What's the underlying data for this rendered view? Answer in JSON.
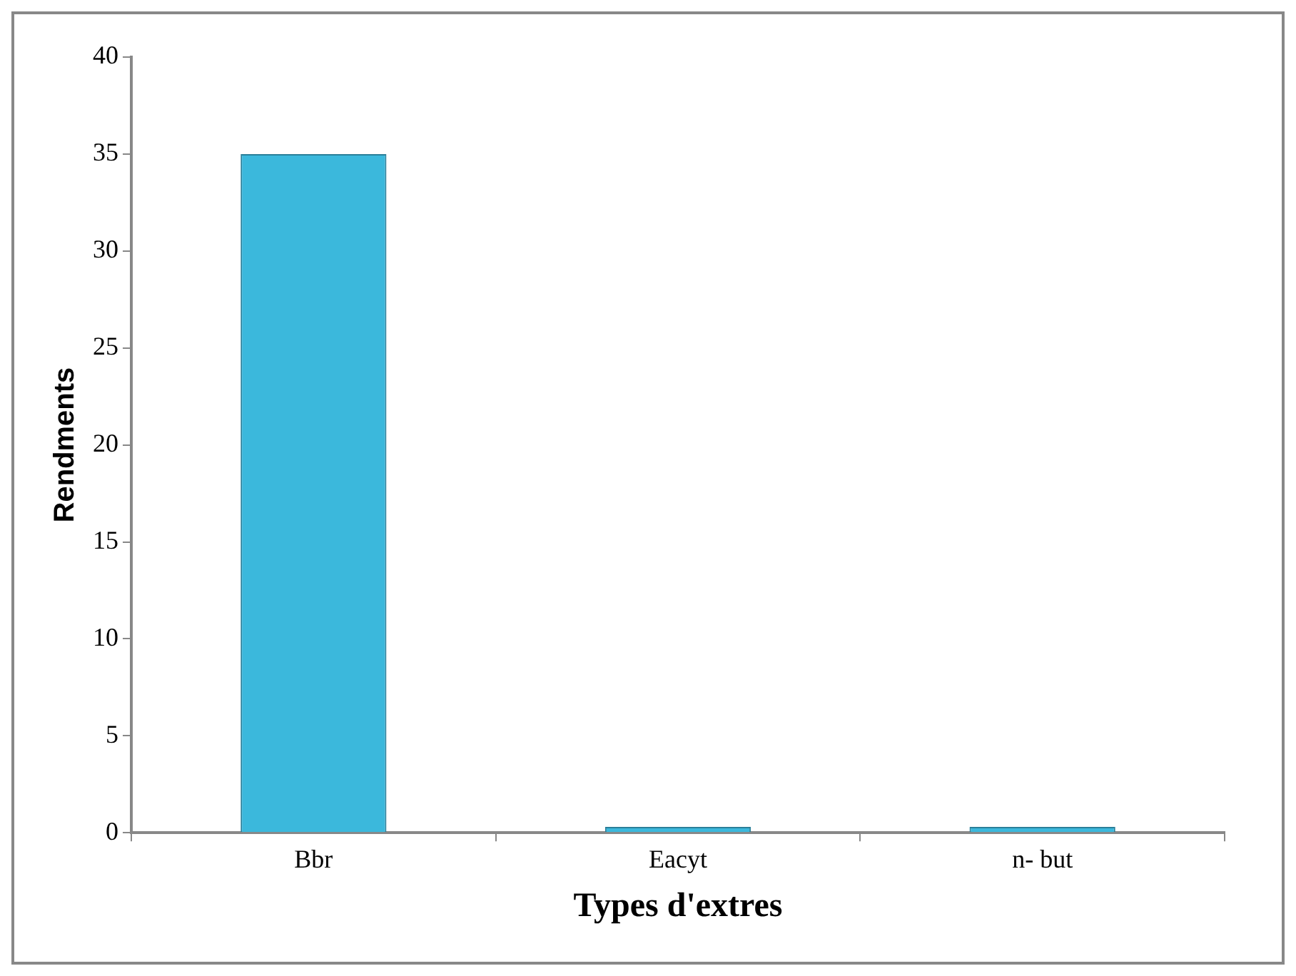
{
  "chart_data": {
    "type": "bar",
    "xlabel": "Types d'extres",
    "ylabel": "Rendments",
    "categories": [
      "Bbr",
      "Eacyt",
      "n- but"
    ],
    "values": [
      35,
      0.3,
      0.3
    ],
    "color": "#3bb8dc",
    "ylim": [
      0,
      40
    ],
    "yticks": [
      0,
      5,
      10,
      15,
      20,
      25,
      30,
      35,
      40
    ],
    "grid": false,
    "legend": false
  }
}
